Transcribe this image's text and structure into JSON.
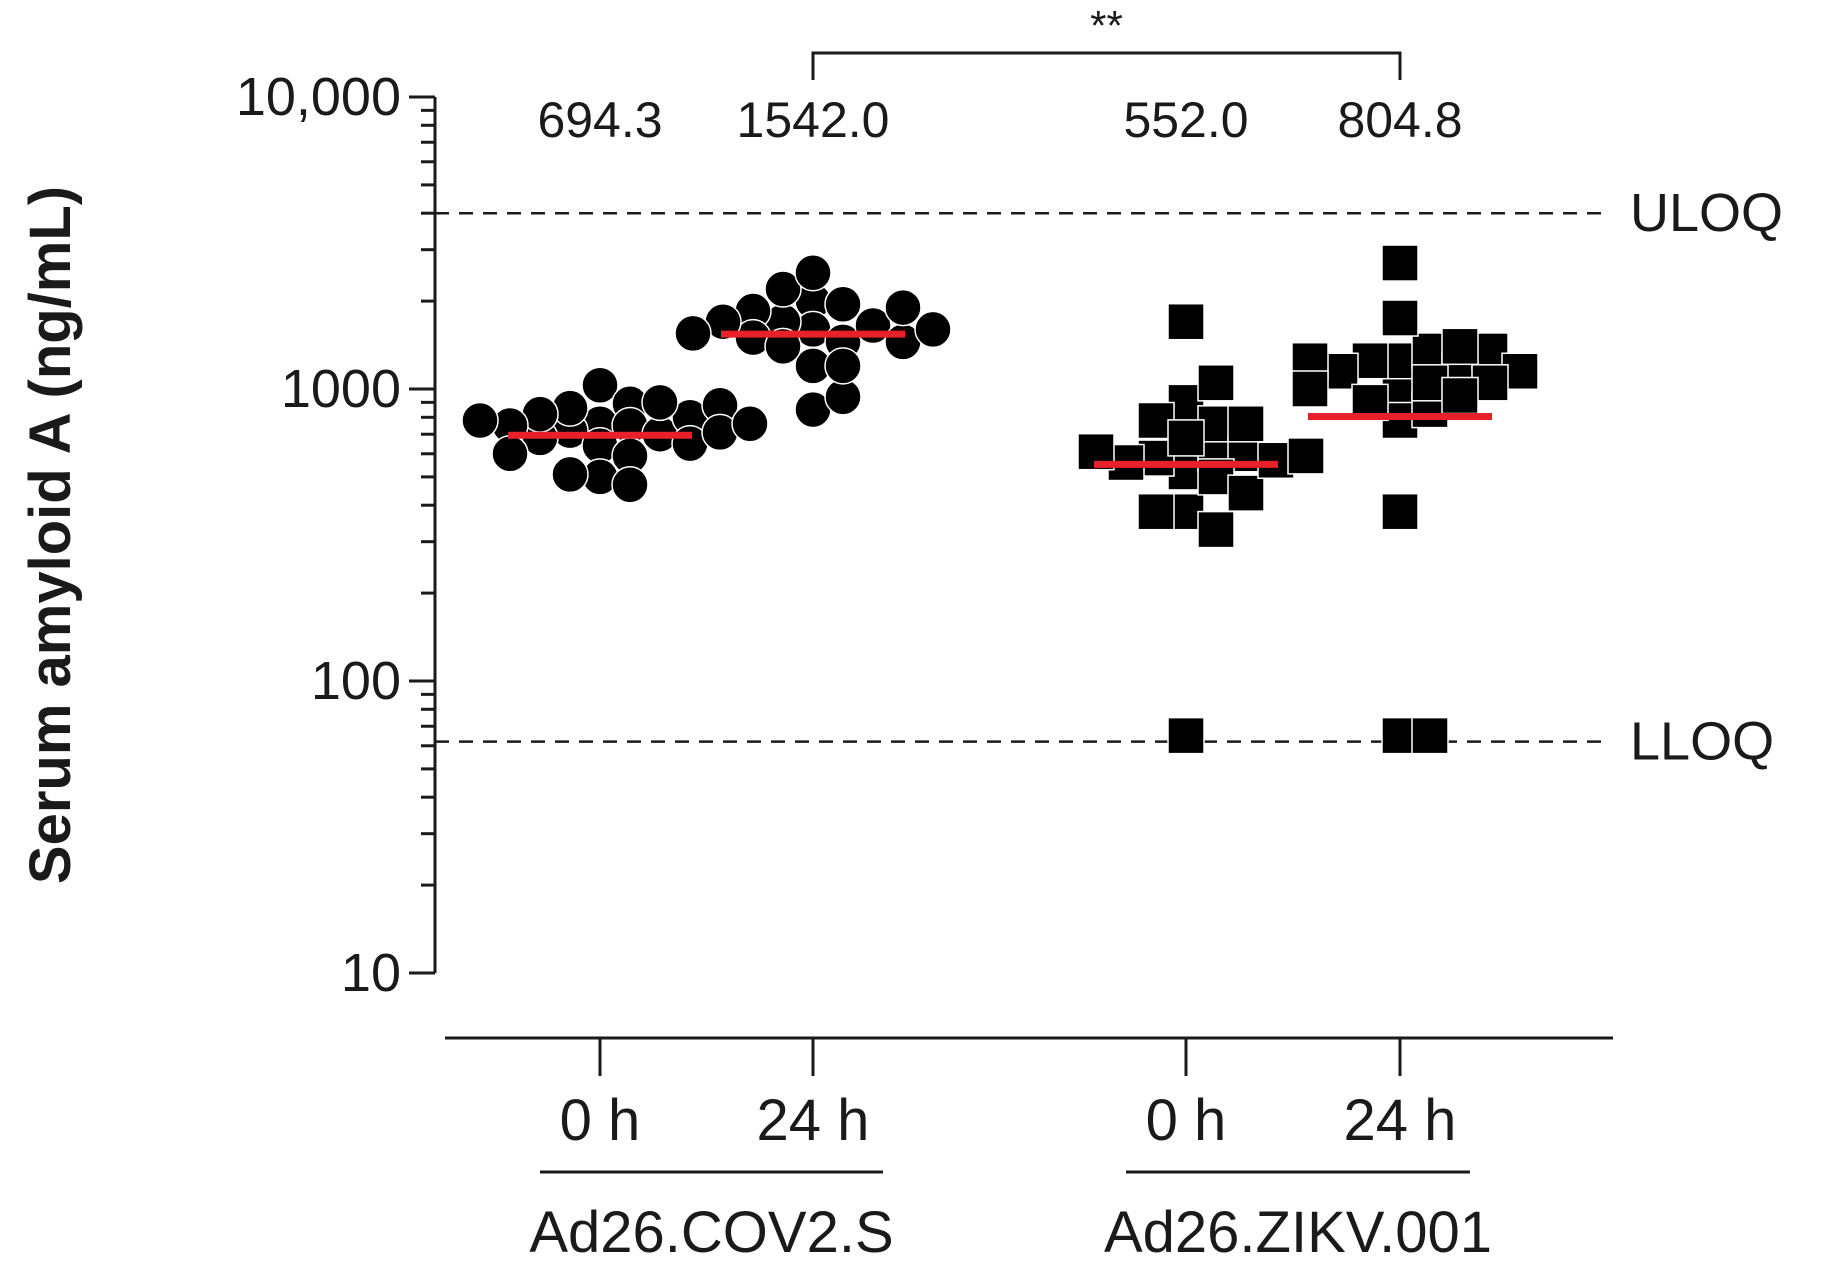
{
  "chart_data": {
    "type": "scatter",
    "title": "",
    "xlabel": "",
    "ylabel": "Serum amyloid A (ng/mL)",
    "yscale": "log",
    "ylim": [
      10,
      10000
    ],
    "y_ticks": [
      {
        "value": 10,
        "label": "10"
      },
      {
        "value": 100,
        "label": "100"
      },
      {
        "value": 1000,
        "label": "1000"
      },
      {
        "value": 10000,
        "label": "10,000"
      }
    ],
    "reference_lines": [
      {
        "name": "ULOQ",
        "value": 4000
      },
      {
        "name": "LLOQ",
        "value": 62
      }
    ],
    "groups": [
      {
        "label": "Ad26.COV2.S",
        "series_indices": [
          0,
          1
        ]
      },
      {
        "label": "Ad26.ZIKV.001",
        "series_indices": [
          2,
          3
        ]
      }
    ],
    "series": [
      {
        "name": "Ad26.COV2.S 0 h",
        "x_label": "0 h",
        "group": "Ad26.COV2.S",
        "marker": "circle",
        "median": 694.3,
        "median_label": "694.3",
        "values": [
          1030,
          890,
          760,
          750,
          720,
          700,
          680,
          860,
          800,
          640,
          820,
          750,
          650,
          590,
          500,
          510,
          470,
          900,
          880,
          780,
          710,
          760,
          600
        ]
      },
      {
        "name": "Ad26.COV2.S 24 h",
        "x_label": "24 h",
        "group": "Ad26.COV2.S",
        "marker": "circle",
        "median": 1542.0,
        "median_label": "1542.0",
        "values": [
          2000,
          1600,
          1950,
          1700,
          1450,
          1200,
          2200,
          1650,
          1850,
          1500,
          1450,
          850,
          940,
          1200,
          2500,
          1900,
          1700,
          1600,
          1550,
          1400
        ]
      },
      {
        "name": "Ad26.ZIKV.001 0 h",
        "x_label": "0 h",
        "group": "Ad26.ZIKV.001",
        "marker": "square",
        "median": 552.0,
        "median_label": "552.0",
        "values": [
          520,
          600,
          900,
          760,
          580,
          1050,
          780,
          600,
          380,
          1700,
          500,
          330,
          560,
          380,
          440,
          680,
          570,
          760,
          610,
          590,
          65
        ]
      },
      {
        "name": "Ad26.ZIKV.001 24 h",
        "x_label": "24 h",
        "group": "Ad26.ZIKV.001",
        "marker": "square",
        "median": 804.8,
        "median_label": "804.8",
        "values": [
          1000,
          1250,
          1350,
          1250,
          1150,
          780,
          1150,
          1350,
          2700,
          1750,
          1400,
          380,
          850,
          1050,
          900,
          1250,
          1150,
          1050,
          950,
          1000,
          65,
          65
        ]
      }
    ],
    "annotations": [
      {
        "type": "significance",
        "text": "**",
        "between": [
          "Ad26.COV2.S 24 h",
          "Ad26.ZIKV.001 24 h"
        ]
      }
    ]
  }
}
